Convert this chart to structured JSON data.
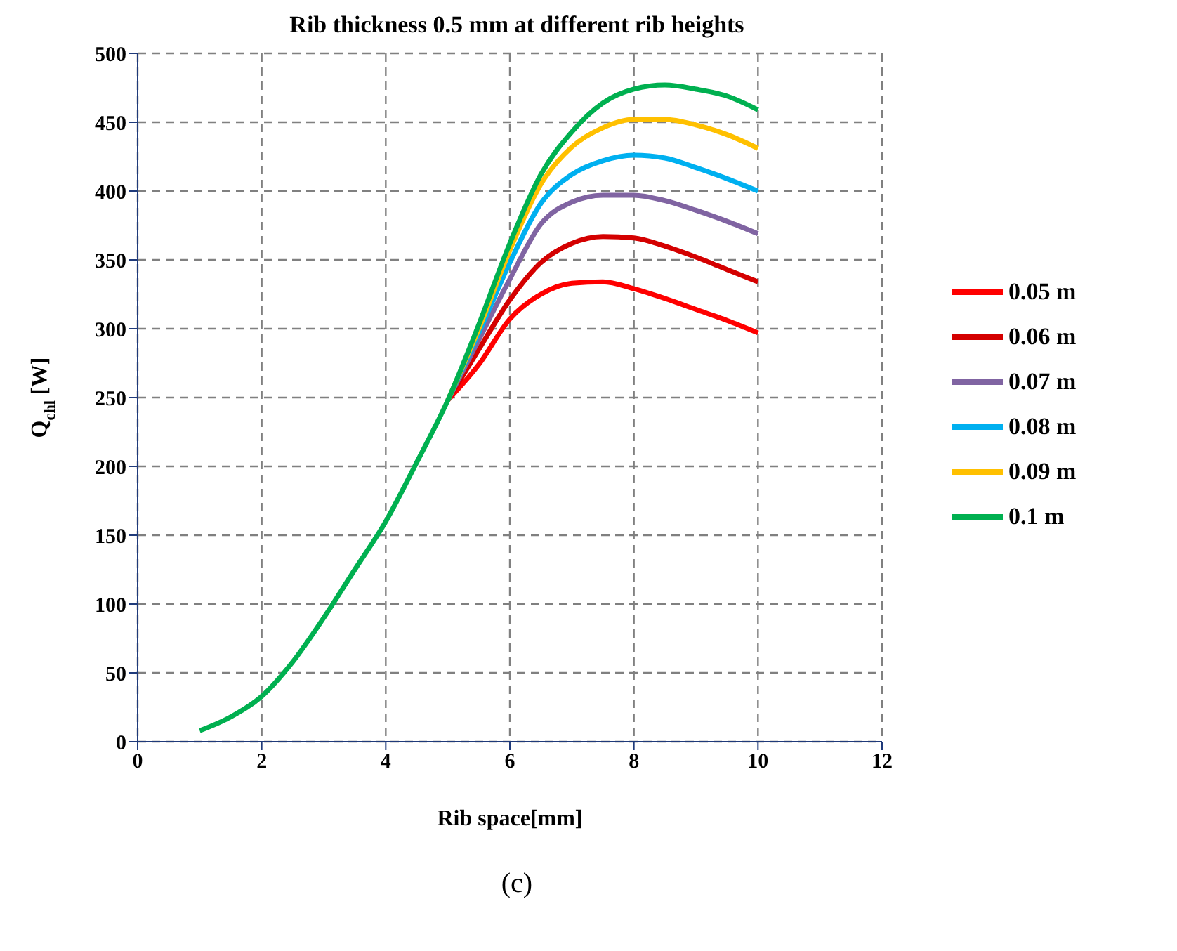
{
  "chart_data": {
    "type": "line",
    "title": "Rib thickness 0.5 mm at different rib heights",
    "xlabel": "Rib space[mm]",
    "ylabel": "Q$_{chl}$ [W]",
    "annotations": [
      "(c)"
    ],
    "x": [
      1,
      1.5,
      2,
      2.5,
      3,
      3.5,
      4,
      4.5,
      5,
      5.5,
      6,
      6.5,
      7,
      7.5,
      8,
      8.5,
      9,
      9.5,
      10
    ],
    "series": [
      {
        "name": "0.05 m",
        "color": "#ff0000",
        "values": [
          null,
          null,
          null,
          null,
          null,
          null,
          null,
          null,
          248,
          274,
          307,
          325,
          333,
          334,
          329,
          322,
          314,
          306,
          297
        ]
      },
      {
        "name": "0.06 m",
        "color": "#d40000",
        "values": [
          null,
          null,
          null,
          null,
          null,
          null,
          null,
          null,
          248,
          285,
          321,
          348,
          362,
          367,
          366,
          360,
          352,
          343,
          334
        ]
      },
      {
        "name": "0.07 m",
        "color": "#8064a2",
        "values": [
          null,
          null,
          null,
          null,
          null,
          null,
          null,
          null,
          248,
          292,
          336,
          376,
          392,
          397,
          397,
          393,
          386,
          378,
          369
        ]
      },
      {
        "name": "0.08 m",
        "color": "#00b0f0",
        "values": [
          null,
          null,
          null,
          null,
          null,
          null,
          null,
          null,
          248,
          297,
          348,
          391,
          412,
          422,
          426,
          424,
          417,
          409,
          400
        ]
      },
      {
        "name": "0.09 m",
        "color": "#ffc000",
        "values": [
          null,
          null,
          null,
          null,
          null,
          null,
          null,
          null,
          248,
          300,
          357,
          405,
          432,
          446,
          452,
          452,
          448,
          441,
          431
        ]
      },
      {
        "name": "0.1 m",
        "color": "#00b050",
        "values": [
          8,
          18,
          33,
          58,
          90,
          125,
          160,
          203,
          248,
          303,
          362,
          412,
          443,
          464,
          474,
          477,
          474,
          469,
          459
        ]
      }
    ],
    "xlim": [
      0,
      12
    ],
    "xticks": [
      0,
      2,
      4,
      6,
      8,
      10,
      12
    ],
    "ylim": [
      0,
      500
    ],
    "yticks": [
      0,
      50,
      100,
      150,
      200,
      250,
      300,
      350,
      400,
      450,
      500
    ],
    "grid": true,
    "legend": "right",
    "marker": "none",
    "line_style": "solid"
  }
}
